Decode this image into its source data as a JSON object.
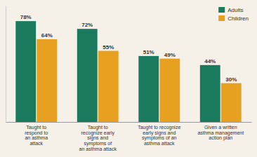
{
  "chart_data": {
    "type": "bar",
    "categories": [
      "Taught to\nrespond to\nan asthma\nattack",
      "Taught to\nrecognize early\nsigns and\nsymptoms of\nan asthma attack",
      "Taught to recognize\nearly signs and\nsymptoms of an\nasthma attack",
      "Given a written\nasthma management\naction plan"
    ],
    "series": [
      {
        "name": "Adults",
        "color": "#1a7a5e",
        "values": [
          78,
          72,
          51,
          44
        ],
        "value_labels": [
          "78%",
          "72%",
          "51%",
          "44%"
        ]
      },
      {
        "name": "Children",
        "color": "#e8a020",
        "values": [
          64,
          55,
          49,
          30
        ],
        "value_labels": [
          "64%",
          "55%",
          "49%",
          "30%"
        ]
      }
    ],
    "ylim": [
      0,
      90
    ],
    "grid": false,
    "legend": "upper right",
    "data_labels": true,
    "tick_labels": "x"
  }
}
